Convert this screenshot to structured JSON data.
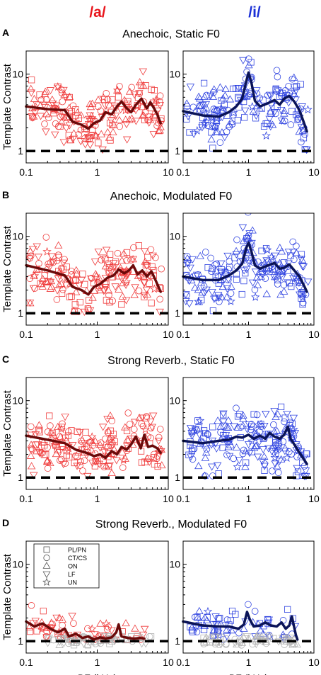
{
  "figure": {
    "column_titles": {
      "a": {
        "text": "/a/",
        "color": "#e8141b"
      },
      "i": {
        "text": "/i/",
        "color": "#1a2fd6"
      }
    },
    "row_titles": [
      {
        "letter": "A",
        "title": "Anechoic, Static F0"
      },
      {
        "letter": "B",
        "title": "Anechoic, Modulated F0"
      },
      {
        "letter": "C",
        "title": "Strong Reverb., Static F0"
      },
      {
        "letter": "D",
        "title": "Strong Reverb., Modulated F0"
      }
    ],
    "ylabel": "Template Contrast",
    "xlabel": "BF (kHz)",
    "colors": {
      "a_markers": "#ef3b3b",
      "i_markers": "#2f43e0",
      "a_trend": "#6b0a0a",
      "i_trend": "#0b1458",
      "gray_markers": "#b4b4b4",
      "reference": "#000000"
    }
  },
  "chart_data": {
    "type": "scatter",
    "x_scale": "log",
    "y_scale": "log",
    "xlim": [
      0.1,
      10
    ],
    "ylim": [
      0.7,
      20
    ],
    "x_ticks": [
      {
        "v": 0.1,
        "label": "0.1"
      },
      {
        "v": 1,
        "label": "1"
      },
      {
        "v": 10,
        "label": "10"
      }
    ],
    "y_ticks": [
      {
        "v": 1,
        "label": "1"
      },
      {
        "v": 10,
        "label": "10"
      }
    ],
    "reference_line": {
      "y": 1,
      "style": "dashed"
    },
    "legend": {
      "placement": "upper-left of panel D /a/",
      "entries": [
        {
          "marker": "square",
          "label": "PL/PN"
        },
        {
          "marker": "circle",
          "label": "CT/CS"
        },
        {
          "marker": "triangle-up",
          "label": "ON"
        },
        {
          "marker": "triangle-down",
          "label": "LF"
        },
        {
          "marker": "star",
          "label": "UN"
        }
      ]
    },
    "panels": [
      {
        "row": "A",
        "vowel": "/a/",
        "trend": [
          [
            0.1,
            3.8
          ],
          [
            0.2,
            3.5
          ],
          [
            0.35,
            3.4
          ],
          [
            0.45,
            2.4
          ],
          [
            0.6,
            2.2
          ],
          [
            0.75,
            1.95
          ],
          [
            0.9,
            2.3
          ],
          [
            1.1,
            2.5
          ],
          [
            1.3,
            3.2
          ],
          [
            1.6,
            3.0
          ],
          [
            1.9,
            3.8
          ],
          [
            2.2,
            4.4
          ],
          [
            2.6,
            3.6
          ],
          [
            3.0,
            3.2
          ],
          [
            3.5,
            4.0
          ],
          [
            4.2,
            4.8
          ],
          [
            5.0,
            3.6
          ],
          [
            5.6,
            4.3
          ],
          [
            6.3,
            3.6
          ],
          [
            7.0,
            3.0
          ],
          [
            7.8,
            2.3
          ]
        ]
      },
      {
        "row": "A",
        "vowel": "/i/",
        "trend": [
          [
            0.1,
            3.3
          ],
          [
            0.2,
            2.9
          ],
          [
            0.35,
            2.8
          ],
          [
            0.5,
            3.2
          ],
          [
            0.65,
            3.8
          ],
          [
            0.8,
            4.8
          ],
          [
            0.92,
            8.0
          ],
          [
            1.0,
            10.5
          ],
          [
            1.1,
            8.0
          ],
          [
            1.25,
            4.5
          ],
          [
            1.5,
            3.8
          ],
          [
            2.0,
            4.2
          ],
          [
            2.5,
            4.6
          ],
          [
            3.0,
            4.0
          ],
          [
            3.5,
            4.8
          ],
          [
            4.2,
            5.2
          ],
          [
            5.0,
            4.4
          ],
          [
            6.0,
            3.4
          ],
          [
            7.2,
            2.2
          ],
          [
            7.8,
            1.8
          ]
        ]
      },
      {
        "row": "B",
        "vowel": "/a/",
        "trend": [
          [
            0.1,
            4.2
          ],
          [
            0.2,
            3.6
          ],
          [
            0.35,
            3.1
          ],
          [
            0.45,
            2.2
          ],
          [
            0.6,
            2.0
          ],
          [
            0.75,
            1.75
          ],
          [
            0.9,
            2.2
          ],
          [
            1.1,
            2.4
          ],
          [
            1.4,
            2.9
          ],
          [
            1.7,
            3.1
          ],
          [
            2.0,
            3.7
          ],
          [
            2.4,
            3.3
          ],
          [
            2.8,
            3.6
          ],
          [
            3.2,
            4.2
          ],
          [
            3.7,
            3.2
          ],
          [
            4.3,
            3.6
          ],
          [
            5.0,
            3.0
          ],
          [
            5.8,
            3.5
          ],
          [
            6.6,
            2.7
          ],
          [
            7.8,
            1.9
          ]
        ]
      },
      {
        "row": "B",
        "vowel": "/i/",
        "trend": [
          [
            0.1,
            3.0
          ],
          [
            0.2,
            2.7
          ],
          [
            0.35,
            2.7
          ],
          [
            0.5,
            3.1
          ],
          [
            0.65,
            3.6
          ],
          [
            0.8,
            4.4
          ],
          [
            0.92,
            7.0
          ],
          [
            1.0,
            8.3
          ],
          [
            1.1,
            6.5
          ],
          [
            1.25,
            4.2
          ],
          [
            1.5,
            3.8
          ],
          [
            2.0,
            4.2
          ],
          [
            2.5,
            4.5
          ],
          [
            3.0,
            3.8
          ],
          [
            3.5,
            3.9
          ],
          [
            4.2,
            4.3
          ],
          [
            5.0,
            3.6
          ],
          [
            6.0,
            3.0
          ],
          [
            7.2,
            2.2
          ],
          [
            7.8,
            1.9
          ]
        ]
      },
      {
        "row": "C",
        "vowel": "/a/",
        "trend": [
          [
            0.1,
            3.5
          ],
          [
            0.2,
            3.1
          ],
          [
            0.35,
            2.8
          ],
          [
            0.5,
            2.3
          ],
          [
            0.7,
            2.1
          ],
          [
            0.9,
            1.9
          ],
          [
            1.1,
            2.0
          ],
          [
            1.3,
            1.8
          ],
          [
            1.6,
            2.2
          ],
          [
            1.9,
            2.0
          ],
          [
            2.2,
            2.5
          ],
          [
            2.6,
            2.3
          ],
          [
            3.0,
            2.7
          ],
          [
            3.5,
            3.4
          ],
          [
            4.1,
            2.4
          ],
          [
            4.6,
            3.6
          ],
          [
            5.2,
            2.5
          ],
          [
            6.0,
            2.6
          ],
          [
            7.0,
            2.4
          ],
          [
            7.8,
            2.1
          ]
        ]
      },
      {
        "row": "C",
        "vowel": "/i/",
        "trend": [
          [
            0.1,
            3.0
          ],
          [
            0.2,
            2.8
          ],
          [
            0.35,
            3.0
          ],
          [
            0.5,
            3.1
          ],
          [
            0.65,
            3.4
          ],
          [
            0.8,
            3.3
          ],
          [
            1.0,
            3.6
          ],
          [
            1.2,
            3.2
          ],
          [
            1.5,
            3.5
          ],
          [
            1.8,
            3.2
          ],
          [
            2.1,
            3.8
          ],
          [
            2.5,
            3.4
          ],
          [
            3.0,
            3.2
          ],
          [
            3.5,
            3.6
          ],
          [
            4.0,
            4.6
          ],
          [
            4.4,
            3.2
          ],
          [
            5.0,
            2.7
          ],
          [
            5.8,
            2.2
          ],
          [
            6.8,
            1.8
          ],
          [
            7.8,
            1.5
          ]
        ]
      },
      {
        "row": "D",
        "vowel": "/a/",
        "trend": [
          [
            0.1,
            1.8
          ],
          [
            0.13,
            1.55
          ],
          [
            0.17,
            1.7
          ],
          [
            0.22,
            1.45
          ],
          [
            0.28,
            1.3
          ],
          [
            0.35,
            1.45
          ],
          [
            0.4,
            1.15
          ],
          [
            0.5,
            1.25
          ],
          [
            0.62,
            1.1
          ],
          [
            0.75,
            1.15
          ],
          [
            0.9,
            1.05
          ],
          [
            1.1,
            1.12
          ],
          [
            1.3,
            1.08
          ],
          [
            1.6,
            1.12
          ],
          [
            1.85,
            1.3
          ],
          [
            2.0,
            1.65
          ],
          [
            2.2,
            1.15
          ],
          [
            2.7,
            1.1
          ],
          [
            3.3,
            1.08
          ],
          [
            4.0,
            1.1
          ],
          [
            4.6,
            1.08
          ]
        ]
      },
      {
        "row": "D",
        "vowel": "/i/",
        "trend": [
          [
            0.1,
            1.8
          ],
          [
            0.2,
            1.6
          ],
          [
            0.35,
            1.55
          ],
          [
            0.5,
            1.55
          ],
          [
            0.7,
            1.45
          ],
          [
            0.85,
            1.65
          ],
          [
            0.95,
            2.4
          ],
          [
            1.05,
            1.9
          ],
          [
            1.2,
            1.55
          ],
          [
            1.5,
            1.6
          ],
          [
            1.8,
            1.75
          ],
          [
            2.2,
            1.6
          ],
          [
            2.7,
            1.55
          ],
          [
            3.2,
            1.75
          ],
          [
            3.7,
            1.45
          ],
          [
            4.2,
            1.6
          ],
          [
            4.6,
            2.1
          ],
          [
            5.0,
            1.5
          ],
          [
            5.3,
            1.2
          ],
          [
            5.6,
            1.05
          ]
        ]
      }
    ]
  }
}
